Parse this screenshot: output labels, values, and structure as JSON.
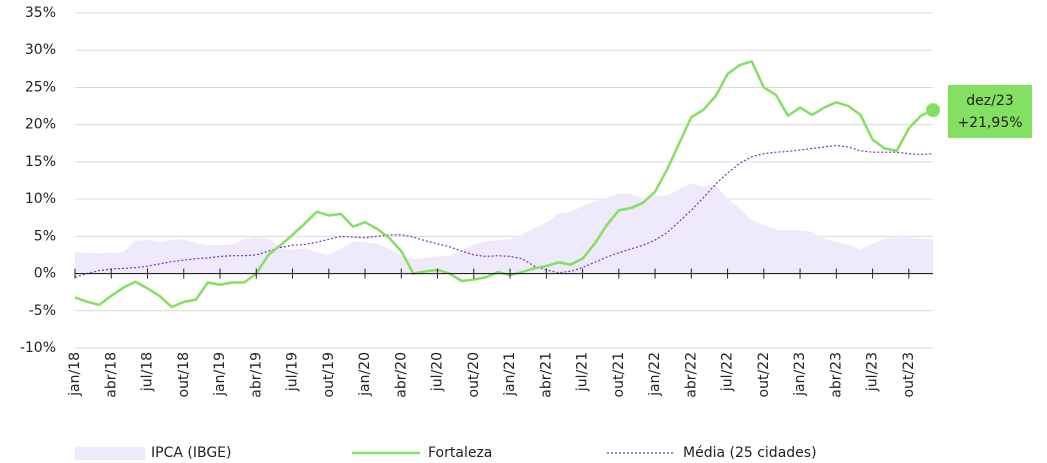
{
  "chart_data": {
    "type": "line",
    "categories": [
      "jan/18",
      null,
      null,
      "abr/18",
      null,
      null,
      "jul/18",
      null,
      null,
      "out/18",
      null,
      null,
      "jan/19",
      null,
      null,
      "abr/19",
      null,
      null,
      "jul/19",
      null,
      null,
      "out/19",
      null,
      null,
      "jan/20",
      null,
      null,
      "abr/20",
      null,
      null,
      "jul/20",
      null,
      null,
      "out/20",
      null,
      null,
      "jan/21",
      null,
      null,
      "abr/21",
      null,
      null,
      "jul/21",
      null,
      null,
      "out/21",
      null,
      null,
      "jan/22",
      null,
      null,
      "abr/22",
      null,
      null,
      "jul/22",
      null,
      null,
      "out/22",
      null,
      null,
      "jan/23",
      null,
      null,
      "abr/23",
      null,
      null,
      "jul/23",
      null,
      null,
      "out/23",
      null,
      null
    ],
    "series": [
      {
        "name": "IPCA (IBGE)",
        "kind": "area",
        "color": "#eee9fb",
        "values": [
          2.9,
          2.8,
          2.7,
          2.8,
          2.9,
          4.4,
          4.5,
          4.2,
          4.5,
          4.6,
          4.1,
          3.8,
          3.8,
          3.9,
          4.6,
          4.9,
          4.7,
          3.4,
          3.2,
          3.4,
          2.9,
          2.5,
          3.3,
          4.3,
          4.2,
          4.0,
          3.3,
          2.4,
          1.9,
          2.1,
          2.3,
          2.4,
          3.1,
          3.9,
          4.3,
          4.5,
          4.6,
          5.2,
          6.1,
          6.8,
          8.1,
          8.3,
          9.0,
          9.7,
          10.2,
          10.7,
          10.7,
          10.1,
          10.4,
          10.5,
          11.3,
          12.1,
          11.7,
          11.9,
          10.1,
          8.7,
          7.2,
          6.5,
          5.9,
          5.8,
          5.8,
          5.6,
          4.7,
          4.2,
          3.9,
          3.2,
          4.0,
          4.6,
          5.2,
          4.8,
          4.7,
          4.6
        ]
      },
      {
        "name": "Fortaleza",
        "kind": "line",
        "color": "#84e060",
        "values": [
          -3.2,
          -3.8,
          -4.2,
          -3.0,
          -1.9,
          -1.1,
          -2.0,
          -3.0,
          -4.5,
          -3.8,
          -3.5,
          -1.2,
          -1.5,
          -1.2,
          -1.2,
          0.0,
          2.5,
          3.8,
          5.2,
          6.7,
          8.3,
          7.8,
          8.0,
          6.3,
          6.9,
          6.0,
          4.8,
          3.0,
          0.0,
          0.3,
          0.5,
          0.0,
          -1.0,
          -0.8,
          -0.5,
          0.2,
          -0.2,
          0.2,
          0.7,
          1.0,
          1.5,
          1.2,
          2.0,
          4.0,
          6.5,
          8.5,
          8.8,
          9.5,
          11.0,
          14.0,
          17.5,
          21.0,
          22.0,
          23.8,
          26.8,
          28.0,
          28.5,
          25.0,
          24.0,
          21.2,
          22.3,
          21.3,
          22.3,
          23.0,
          22.5,
          21.3,
          18.0,
          16.8,
          16.5,
          19.5,
          21.2,
          21.95
        ]
      },
      {
        "name": "Média (25 cidades)",
        "kind": "dashed",
        "color": "#7a2fc0",
        "values": [
          -0.5,
          0.0,
          0.4,
          0.6,
          0.7,
          0.8,
          1.0,
          1.3,
          1.6,
          1.8,
          2.0,
          2.1,
          2.3,
          2.4,
          2.4,
          2.5,
          3.0,
          3.5,
          3.8,
          3.9,
          4.2,
          4.6,
          5.0,
          4.9,
          4.8,
          5.0,
          5.2,
          5.2,
          4.9,
          4.4,
          4.0,
          3.6,
          3.0,
          2.5,
          2.3,
          2.4,
          2.3,
          2.0,
          1.0,
          0.5,
          0.1,
          0.3,
          0.8,
          1.5,
          2.2,
          2.8,
          3.3,
          3.8,
          4.5,
          5.5,
          7.0,
          8.5,
          10.2,
          12.0,
          13.5,
          14.8,
          15.7,
          16.1,
          16.3,
          16.4,
          16.6,
          16.8,
          17.0,
          17.2,
          17.0,
          16.5,
          16.3,
          16.3,
          16.3,
          16.1,
          16.0,
          16.1
        ]
      }
    ],
    "annotation": {
      "label": "dez/23",
      "value_label": "+21,95%"
    },
    "ylim": [
      -10,
      35
    ],
    "yticks": [
      {
        "value": -10,
        "label": "-10%"
      },
      {
        "value": -5,
        "label": "-5%"
      },
      {
        "value": 0,
        "label": "0%"
      },
      {
        "value": 5,
        "label": "5%"
      },
      {
        "value": 10,
        "label": "10%"
      },
      {
        "value": 15,
        "label": "15%"
      },
      {
        "value": 20,
        "label": "20%"
      },
      {
        "value": 25,
        "label": "25%"
      },
      {
        "value": 30,
        "label": "30%"
      },
      {
        "value": 35,
        "label": "35%"
      }
    ],
    "grid": true
  }
}
